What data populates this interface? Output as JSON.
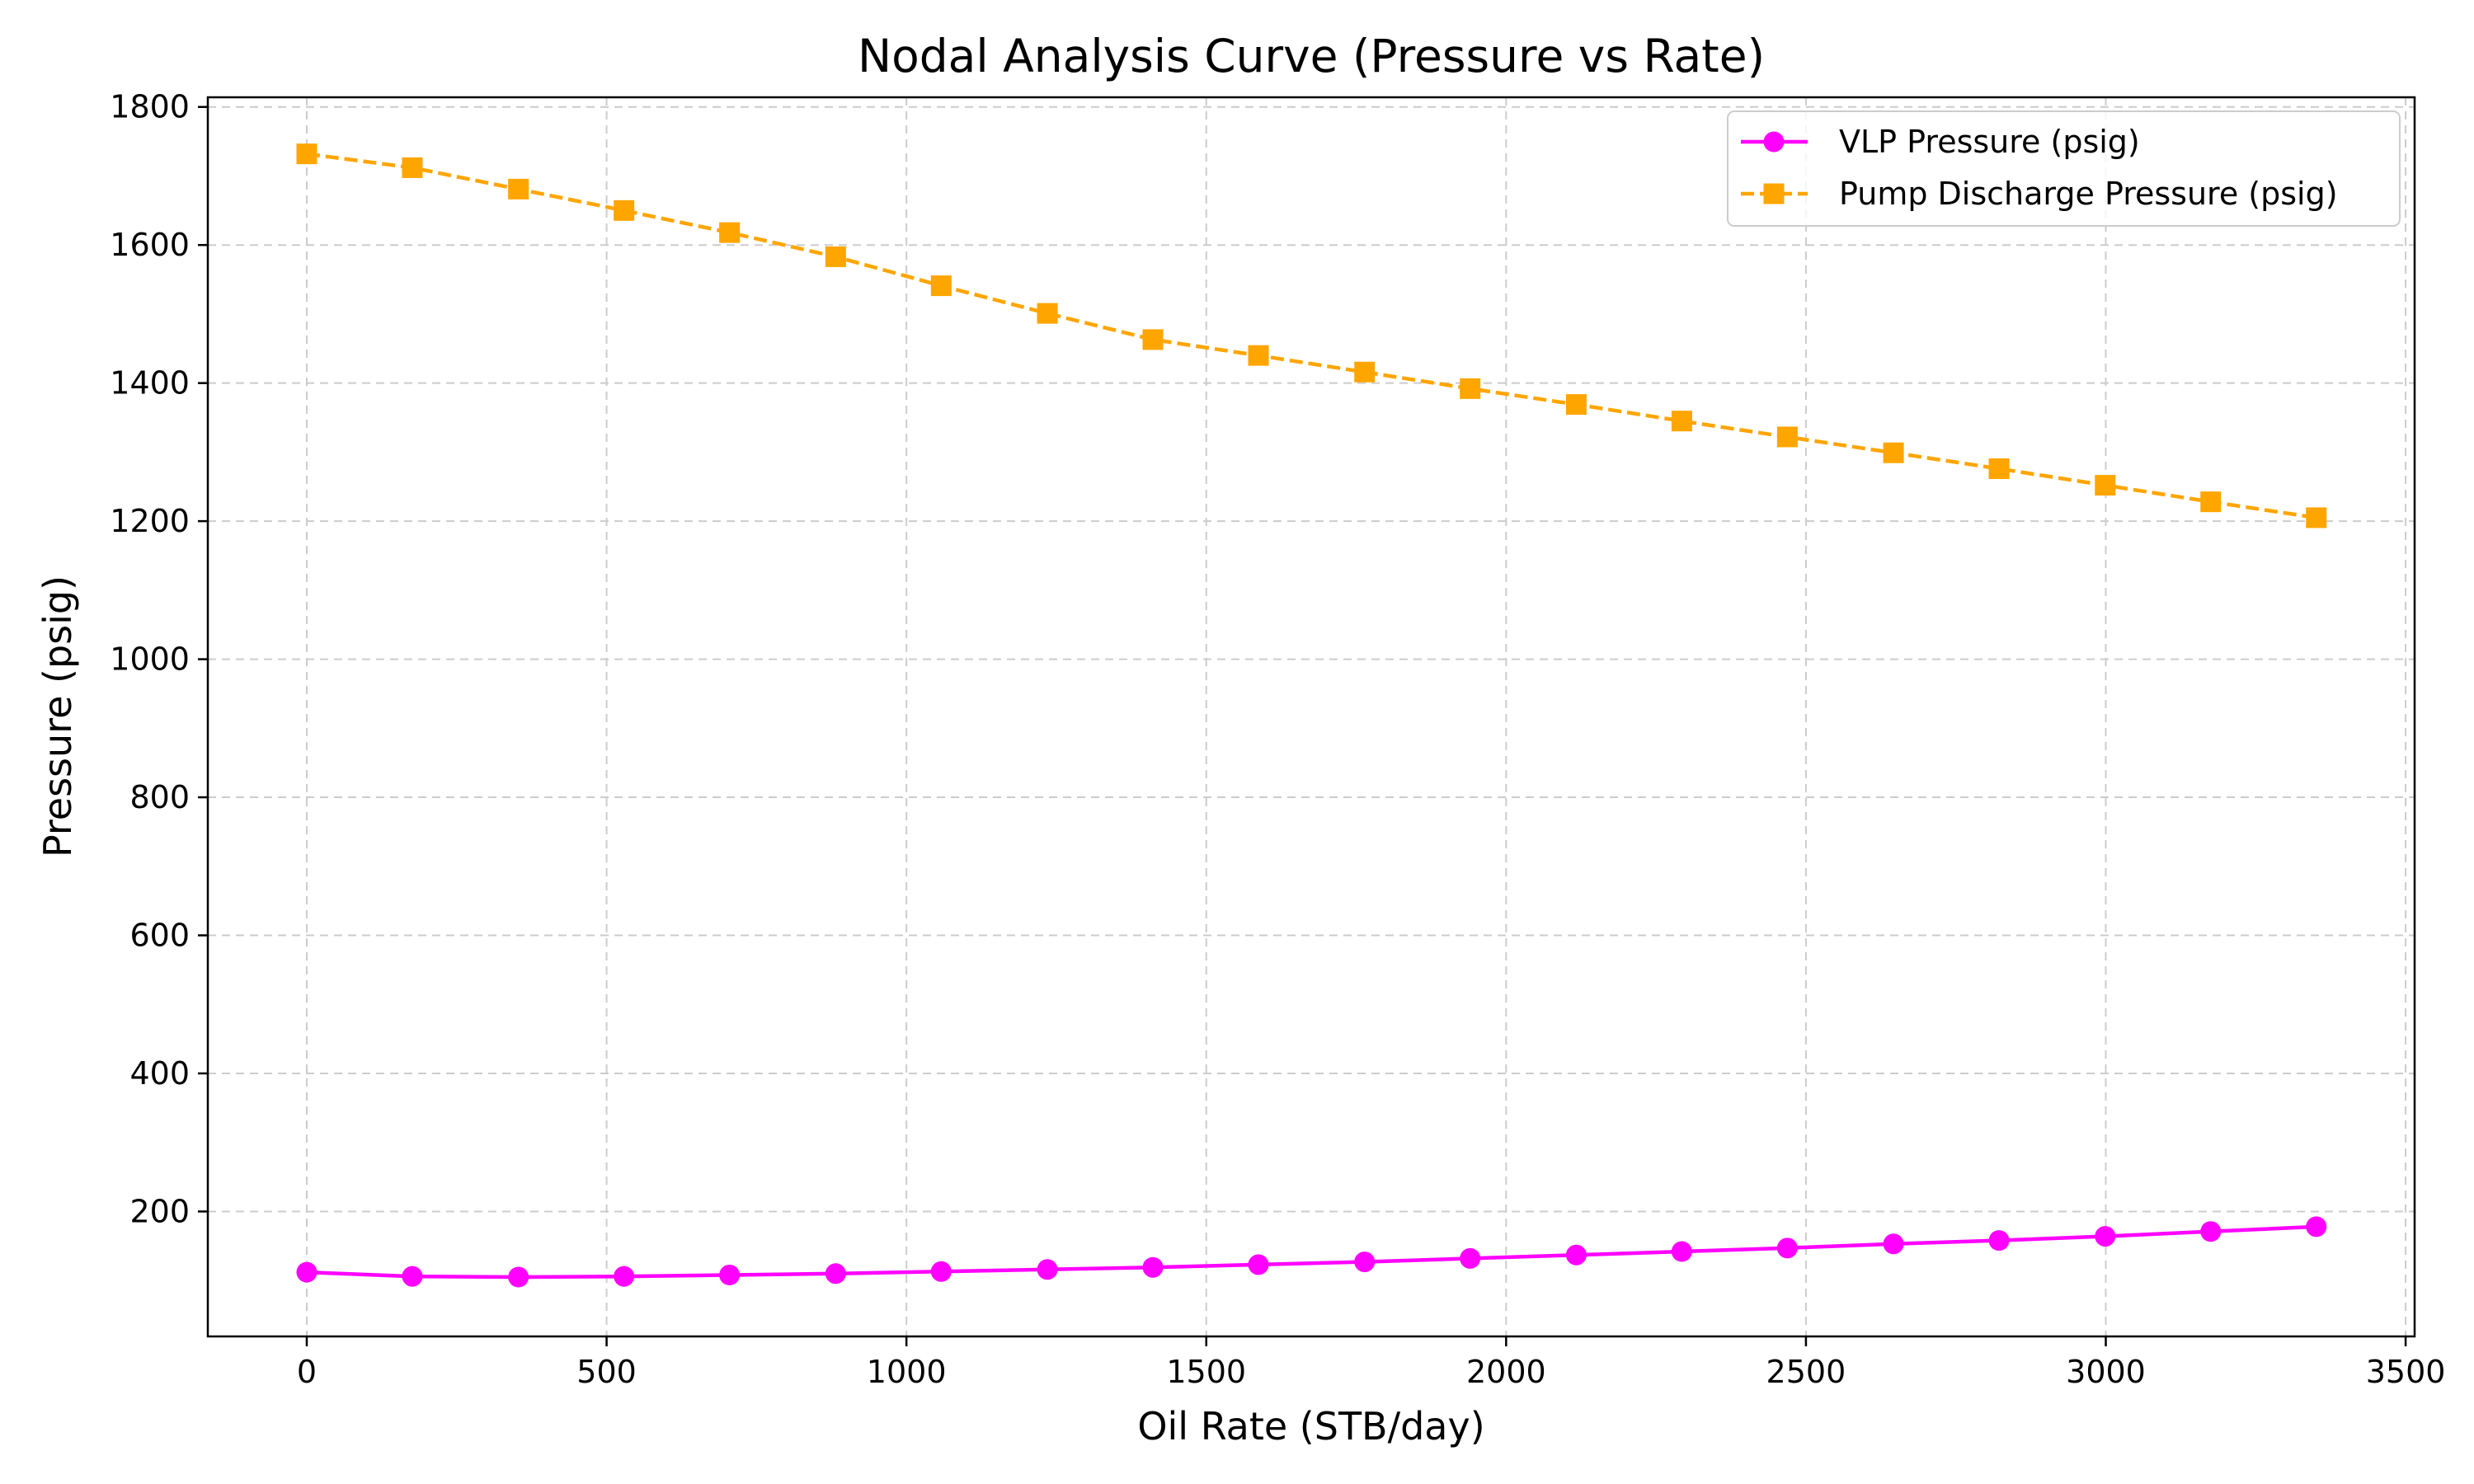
{
  "chart_data": {
    "type": "line",
    "title": "Nodal Analysis Curve (Pressure vs Rate)",
    "xlabel": "Oil Rate (STB/day)",
    "ylabel": "Pressure (psig)",
    "xlim": [
      -165,
      3515
    ],
    "ylim": [
      19,
      1814
    ],
    "xticks": [
      0,
      500,
      1000,
      1500,
      2000,
      2500,
      3000,
      3500
    ],
    "yticks": [
      200,
      400,
      600,
      800,
      1000,
      1200,
      1400,
      1600,
      1800
    ],
    "grid": true,
    "legend_position": "top-right",
    "x": [
      0,
      176,
      353,
      529,
      705,
      882,
      1058,
      1235,
      1411,
      1587,
      1764,
      1940,
      2117,
      2293,
      2469,
      2646,
      2822,
      2999,
      3175,
      3351
    ],
    "series": [
      {
        "name": "VLP Pressure (psig)",
        "color": "#ff00ff",
        "line_style": "solid",
        "marker": "circle",
        "values": [
          112,
          106,
          105,
          106,
          108,
          110,
          113,
          116,
          119,
          123,
          127,
          132,
          137,
          142,
          147,
          153,
          158,
          164,
          171,
          178
        ]
      },
      {
        "name": "Pump Discharge Pressure (psig)",
        "color": "#ffa500",
        "line_style": "dashed",
        "marker": "square",
        "values": [
          1732,
          1712,
          1681,
          1650,
          1618,
          1583,
          1541,
          1501,
          1463,
          1440,
          1416,
          1392,
          1369,
          1345,
          1322,
          1299,
          1276,
          1252,
          1228,
          1205
        ]
      }
    ]
  }
}
